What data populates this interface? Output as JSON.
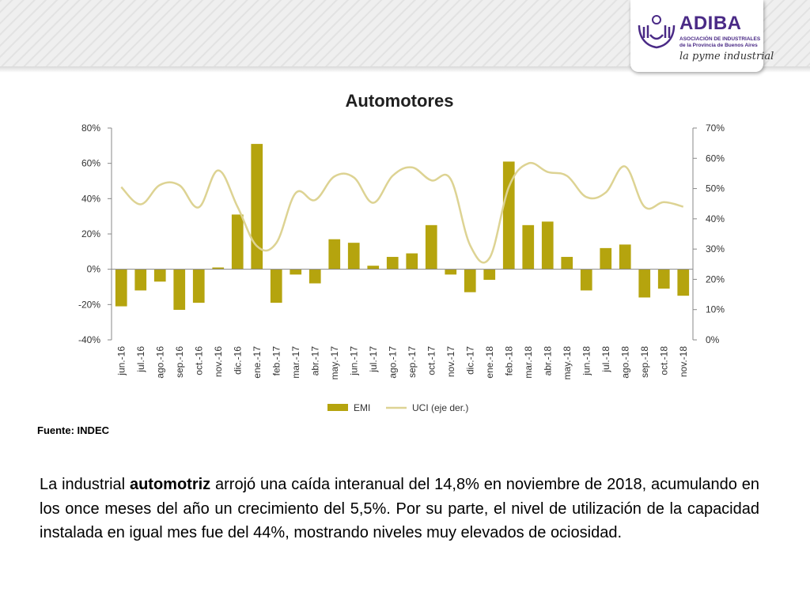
{
  "logo": {
    "name": "ADIBA",
    "subtitle_line1": "ASOCIACIÓN DE INDUSTRIALES",
    "subtitle_line2": "de la Provincia de Buenos Aires",
    "slogan": "la pyme industrial"
  },
  "source": "Fuente: INDEC",
  "paragraph": {
    "p1": "La industrial ",
    "p2": "automotriz",
    "p3": " arrojó una caída interanual del 14,8% en noviembre de 2018, acumulando en los once meses del año un crecimiento del 5,5%. Por su parte, el nivel de utilización  de la capacidad instalada en igual mes fue del 44%, mostrando niveles muy elevados de ociosidad."
  },
  "colors": {
    "bar": "#b5a40e",
    "line": "#ddd393",
    "axis": "#888888"
  },
  "chart_data": {
    "type": "bar",
    "title": "Automotores",
    "categories": [
      "jun.-16",
      "jul.-16",
      "ago.-16",
      "sep.-16",
      "oct.-16",
      "nov.-16",
      "dic.-16",
      "ene.-17",
      "feb.-17",
      "mar.-17",
      "abr.-17",
      "may.-17",
      "jun.-17",
      "jul.-17",
      "ago.-17",
      "sep.-17",
      "oct.-17",
      "nov.-17",
      "dic.-17",
      "ene.-18",
      "feb.-18",
      "mar.-18",
      "abr.-18",
      "may.-18",
      "jun.-18",
      "jul.-18",
      "ago.-18",
      "sep.-18",
      "oct.-18",
      "nov.-18"
    ],
    "series": [
      {
        "name": "EMI",
        "type": "bar",
        "axis": "left",
        "values": [
          -21,
          -12,
          -7,
          -23,
          -19,
          1,
          31,
          71,
          -19,
          -3,
          -8,
          17,
          15,
          2,
          7,
          9,
          25,
          -3,
          -13,
          -6,
          61,
          25,
          27,
          7,
          -12,
          12,
          14,
          -16,
          -11,
          -15
        ]
      },
      {
        "name": "UCI (eje der.)",
        "type": "line",
        "axis": "right",
        "values": [
          50.5,
          44.8,
          51.2,
          51.1,
          43.8,
          56,
          44,
          31,
          32,
          48.5,
          46.2,
          54,
          53.7,
          45.3,
          54.2,
          57,
          52.7,
          53.1,
          31.3,
          27,
          50.5,
          58.3,
          55.5,
          54.2,
          47.2,
          48.7,
          57.3,
          44,
          45.5,
          44
        ]
      }
    ],
    "ylim_left": [
      -40,
      80
    ],
    "yticks_left": [
      "-40%",
      "-20%",
      "0%",
      "20%",
      "40%",
      "60%",
      "80%"
    ],
    "ylim_right": [
      0,
      70
    ],
    "yticks_right": [
      "0%",
      "10%",
      "20%",
      "30%",
      "40%",
      "50%",
      "60%",
      "70%"
    ],
    "legend_position": "bottom",
    "grid": false
  }
}
